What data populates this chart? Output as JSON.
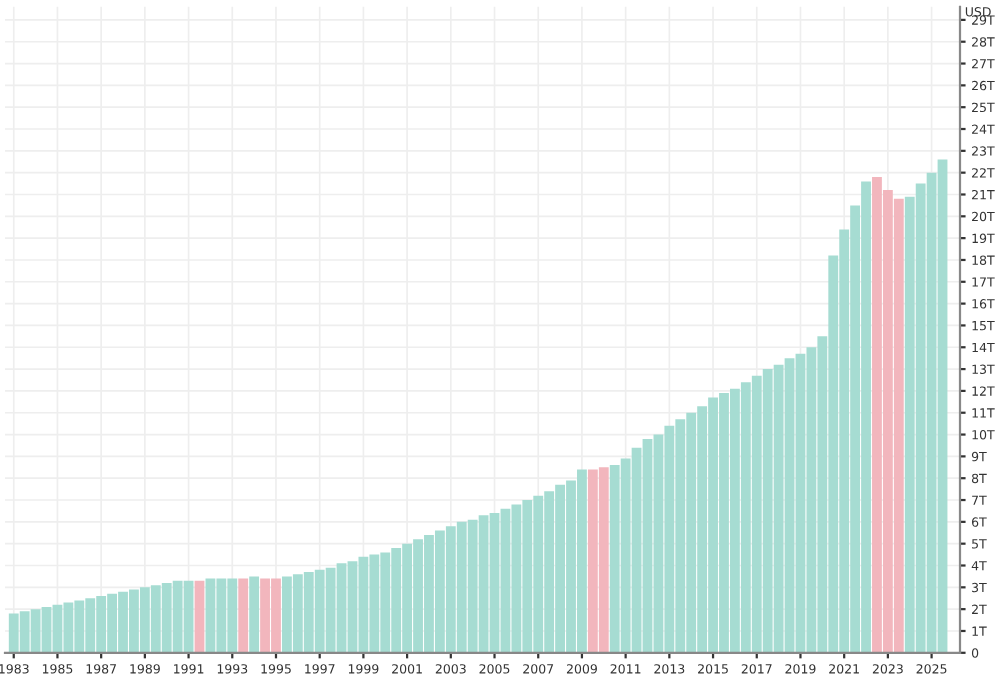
{
  "chart_data": {
    "type": "bar",
    "ylabel": "USD",
    "x": [
      1983.0,
      1983.5,
      1984.0,
      1984.5,
      1985.0,
      1985.5,
      1986.0,
      1986.5,
      1987.0,
      1987.5,
      1988.0,
      1988.5,
      1989.0,
      1989.5,
      1990.0,
      1990.5,
      1991.0,
      1991.5,
      1992.0,
      1992.5,
      1993.0,
      1993.5,
      1994.0,
      1994.5,
      1995.0,
      1995.5,
      1996.0,
      1996.5,
      1997.0,
      1997.5,
      1998.0,
      1998.5,
      1999.0,
      1999.5,
      2000.0,
      2000.5,
      2001.0,
      2001.5,
      2002.0,
      2002.5,
      2003.0,
      2003.5,
      2004.0,
      2004.5,
      2005.0,
      2005.5,
      2006.0,
      2006.5,
      2007.0,
      2007.5,
      2008.0,
      2008.5,
      2009.0,
      2009.5,
      2010.0,
      2010.5,
      2011.0,
      2011.5,
      2012.0,
      2012.5,
      2013.0,
      2013.5,
      2014.0,
      2014.5,
      2015.0,
      2015.5,
      2016.0,
      2016.5,
      2017.0,
      2017.5,
      2018.0,
      2018.5,
      2019.0,
      2019.5,
      2020.0,
      2020.5,
      2021.0,
      2021.5,
      2022.0,
      2022.5,
      2023.0,
      2023.5,
      2024.0,
      2024.5,
      2025.0,
      2025.5
    ],
    "values": [
      1.8,
      1.9,
      2.0,
      2.1,
      2.2,
      2.3,
      2.4,
      2.5,
      2.6,
      2.7,
      2.8,
      2.9,
      3.0,
      3.1,
      3.2,
      3.3,
      3.3,
      3.3,
      3.4,
      3.4,
      3.4,
      3.4,
      3.5,
      3.4,
      3.4,
      3.5,
      3.6,
      3.7,
      3.8,
      3.9,
      4.1,
      4.2,
      4.4,
      4.5,
      4.6,
      4.8,
      5.0,
      5.2,
      5.4,
      5.6,
      5.8,
      6.0,
      6.1,
      6.3,
      6.4,
      6.6,
      6.8,
      7.0,
      7.2,
      7.4,
      7.7,
      7.9,
      8.4,
      8.4,
      8.5,
      8.6,
      8.9,
      9.4,
      9.8,
      10.0,
      10.4,
      10.7,
      11.0,
      11.3,
      11.7,
      11.9,
      12.1,
      12.4,
      12.7,
      13.0,
      13.2,
      13.5,
      13.7,
      14.0,
      14.5,
      18.2,
      19.4,
      20.5,
      21.6,
      21.8,
      21.2,
      20.8,
      20.9,
      21.5,
      22.0,
      22.6
    ],
    "colors": [
      "#a6dcd2",
      "#a6dcd2",
      "#a6dcd2",
      "#a6dcd2",
      "#a6dcd2",
      "#a6dcd2",
      "#a6dcd2",
      "#a6dcd2",
      "#a6dcd2",
      "#a6dcd2",
      "#a6dcd2",
      "#a6dcd2",
      "#a6dcd2",
      "#a6dcd2",
      "#a6dcd2",
      "#a6dcd2",
      "#a6dcd2",
      "#f2b6bd",
      "#a6dcd2",
      "#a6dcd2",
      "#a6dcd2",
      "#f2b6bd",
      "#a6dcd2",
      "#f2b6bd",
      "#f2b6bd",
      "#a6dcd2",
      "#a6dcd2",
      "#a6dcd2",
      "#a6dcd2",
      "#a6dcd2",
      "#a6dcd2",
      "#a6dcd2",
      "#a6dcd2",
      "#a6dcd2",
      "#a6dcd2",
      "#a6dcd2",
      "#a6dcd2",
      "#a6dcd2",
      "#a6dcd2",
      "#a6dcd2",
      "#a6dcd2",
      "#a6dcd2",
      "#a6dcd2",
      "#a6dcd2",
      "#a6dcd2",
      "#a6dcd2",
      "#a6dcd2",
      "#a6dcd2",
      "#a6dcd2",
      "#a6dcd2",
      "#a6dcd2",
      "#a6dcd2",
      "#a6dcd2",
      "#f2b6bd",
      "#f2b6bd",
      "#a6dcd2",
      "#a6dcd2",
      "#a6dcd2",
      "#a6dcd2",
      "#a6dcd2",
      "#a6dcd2",
      "#a6dcd2",
      "#a6dcd2",
      "#a6dcd2",
      "#a6dcd2",
      "#a6dcd2",
      "#a6dcd2",
      "#a6dcd2",
      "#a6dcd2",
      "#a6dcd2",
      "#a6dcd2",
      "#a6dcd2",
      "#a6dcd2",
      "#a6dcd2",
      "#a6dcd2",
      "#a6dcd2",
      "#a6dcd2",
      "#a6dcd2",
      "#a6dcd2",
      "#f2b6bd",
      "#f2b6bd",
      "#f2b6bd",
      "#a6dcd2",
      "#a6dcd2",
      "#a6dcd2",
      "#a6dcd2"
    ],
    "xlim": [
      1982.6,
      2026.3
    ],
    "xticks": [
      1983,
      1985,
      1987,
      1989,
      1991,
      1993,
      1995,
      1997,
      1999,
      2001,
      2003,
      2005,
      2007,
      2009,
      2011,
      2013,
      2015,
      2017,
      2019,
      2021,
      2023,
      2025
    ],
    "ylim": [
      0,
      29.6
    ],
    "yticks": [
      0,
      {
        "value": 1,
        "label": "1T"
      },
      {
        "value": 2,
        "label": "2T"
      },
      {
        "value": 3,
        "label": "3T"
      },
      {
        "value": 4,
        "label": "4T"
      },
      {
        "value": 5,
        "label": "5T"
      },
      {
        "value": 6,
        "label": "6T"
      },
      {
        "value": 7,
        "label": "7T"
      },
      {
        "value": 8,
        "label": "8T"
      },
      {
        "value": 9,
        "label": "9T"
      },
      {
        "value": 10,
        "label": "10T"
      },
      {
        "value": 11,
        "label": "11T"
      },
      {
        "value": 12,
        "label": "12T"
      },
      {
        "value": 13,
        "label": "13T"
      },
      {
        "value": 14,
        "label": "14T"
      },
      {
        "value": 15,
        "label": "15T"
      },
      {
        "value": 16,
        "label": "16T"
      },
      {
        "value": 17,
        "label": "17T"
      },
      {
        "value": 18,
        "label": "18T"
      },
      {
        "value": 19,
        "label": "19T"
      },
      {
        "value": 20,
        "label": "20T"
      },
      {
        "value": 21,
        "label": "21T"
      },
      {
        "value": 22,
        "label": "22T"
      },
      {
        "value": 23,
        "label": "23T"
      },
      {
        "value": 24,
        "label": "24T"
      },
      {
        "value": 25,
        "label": "25T"
      },
      {
        "value": 26,
        "label": "26T"
      },
      {
        "value": 27,
        "label": "27T"
      },
      {
        "value": 28,
        "label": "28T"
      },
      {
        "value": 29,
        "label": "29T"
      }
    ],
    "grid": true,
    "legend": false
  }
}
